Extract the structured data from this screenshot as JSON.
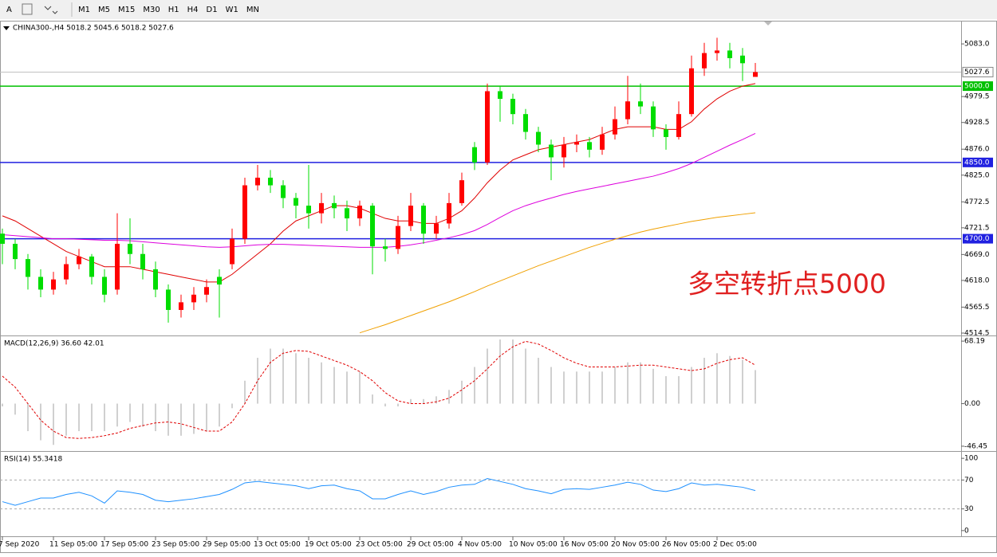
{
  "toolbar": {
    "font": "A",
    "timeframes": [
      "M1",
      "M5",
      "M15",
      "M30",
      "H1",
      "H4",
      "D1",
      "W1",
      "MN"
    ]
  },
  "chart_data": [
    {
      "type": "candlestick",
      "title": "CHINA300-,H4 5018.2 5045.6 5018.2 5027.6",
      "annotation": "多空转折点5000",
      "categories": [
        "7 Sep 2020",
        null,
        null,
        null,
        "11 Sep 05:00",
        null,
        null,
        null,
        "17 Sep 05:00",
        null,
        null,
        null,
        "23 Sep 05:00",
        null,
        null,
        null,
        "29 Sep 05:00",
        null,
        null,
        null,
        "13 Oct 05:00",
        null,
        null,
        null,
        "19 Oct 05:00",
        null,
        null,
        null,
        "23 Oct 05:00",
        null,
        null,
        null,
        "29 Oct 05:00",
        null,
        null,
        null,
        "4 Nov 05:00",
        null,
        null,
        null,
        "10 Nov 05:00",
        null,
        null,
        null,
        "16 Nov 05:00",
        null,
        null,
        null,
        "20 Nov 05:00",
        null,
        null,
        null,
        "26 Nov 05:00",
        null,
        null,
        null,
        "2 Dec 05:00",
        null,
        null,
        null
      ],
      "open": [
        4710,
        4690,
        4660,
        4625,
        4600,
        4620,
        4650,
        4665,
        4625,
        4600,
        4690,
        4670,
        4640,
        4600,
        4560,
        4575,
        4590,
        4625,
        4650,
        4700,
        4805,
        4820,
        4805,
        4780,
        4765,
        4750,
        4770,
        4760,
        4740,
        4765,
        4685,
        4680,
        4725,
        4765,
        4710,
        4730,
        4770,
        4880,
        4850,
        4990,
        4975,
        4945,
        4910,
        4885,
        4860,
        4885,
        4890,
        4875,
        4905,
        4935,
        4970,
        4960,
        4915,
        4900,
        4945,
        5035,
        5065,
        5070,
        5060,
        5018.2
      ],
      "high": [
        4720,
        4700,
        4670,
        4640,
        4635,
        4665,
        4680,
        4670,
        4640,
        4750,
        4740,
        4690,
        4655,
        4610,
        4590,
        4605,
        4620,
        4640,
        4720,
        4820,
        4845,
        4835,
        4815,
        4790,
        4845,
        4790,
        4785,
        4775,
        4775,
        4770,
        4700,
        4745,
        4790,
        4770,
        4745,
        4790,
        4830,
        4890,
        5005,
        5000,
        4985,
        4955,
        4920,
        4895,
        4900,
        4905,
        4900,
        4920,
        4960,
        5020,
        5005,
        4970,
        4925,
        4970,
        5060,
        5085,
        5095,
        5085,
        5075,
        5045.6
      ],
      "low": [
        4650,
        4640,
        4600,
        4585,
        4590,
        4610,
        4640,
        4610,
        4575,
        4590,
        4650,
        4620,
        4585,
        4535,
        4545,
        4560,
        4575,
        4545,
        4640,
        4690,
        4795,
        4790,
        4760,
        4740,
        4720,
        4730,
        4740,
        4715,
        4725,
        4630,
        4655,
        4670,
        4715,
        4690,
        4700,
        4720,
        4765,
        4835,
        4845,
        4930,
        4925,
        4895,
        4870,
        4815,
        4840,
        4870,
        4860,
        4865,
        4895,
        4925,
        4945,
        4900,
        4875,
        4895,
        4940,
        5020,
        5050,
        5035,
        5010,
        5018.2
      ],
      "close": [
        4690,
        4660,
        4625,
        4600,
        4620,
        4650,
        4665,
        4625,
        4590,
        4690,
        4670,
        4640,
        4600,
        4560,
        4575,
        4590,
        4605,
        4610,
        4700,
        4805,
        4820,
        4805,
        4780,
        4765,
        4750,
        4770,
        4760,
        4740,
        4765,
        4685,
        4680,
        4725,
        4765,
        4710,
        4730,
        4770,
        4815,
        4850,
        4990,
        4975,
        4945,
        4910,
        4885,
        4860,
        4885,
        4890,
        4875,
        4905,
        4935,
        4970,
        4960,
        4915,
        4900,
        4945,
        5035,
        5065,
        5070,
        5055,
        5045,
        5027.6
      ],
      "up_color": "#ff0000",
      "down_color": "#00dd00",
      "lines": [
        {
          "color": "#e00000",
          "values": [
            4745,
            4735,
            4720,
            4705,
            4690,
            4675,
            4665,
            4655,
            4645,
            4645,
            4645,
            4640,
            4635,
            4630,
            4625,
            4620,
            4615,
            4615,
            4630,
            4650,
            4670,
            4690,
            4715,
            4735,
            4745,
            4755,
            4765,
            4765,
            4760,
            4750,
            4740,
            4735,
            4735,
            4730,
            4730,
            4740,
            4755,
            4780,
            4810,
            4835,
            4855,
            4865,
            4875,
            4880,
            4885,
            4890,
            4895,
            4905,
            4915,
            4920,
            4920,
            4920,
            4915,
            4915,
            4930,
            4955,
            4975,
            4990,
            5000,
            5005
          ]
        },
        {
          "color": "#dd00dd",
          "values": [
            4708,
            4706,
            4704,
            4702,
            4700,
            4700,
            4699,
            4698,
            4697,
            4697,
            4696,
            4694,
            4692,
            4690,
            4688,
            4686,
            4684,
            4683,
            4684,
            4686,
            4688,
            4689,
            4689,
            4688,
            4687,
            4686,
            4685,
            4684,
            4683,
            4683,
            4683,
            4685,
            4688,
            4692,
            4697,
            4702,
            4708,
            4716,
            4728,
            4742,
            4755,
            4765,
            4773,
            4780,
            4787,
            4793,
            4798,
            4803,
            4808,
            4813,
            4818,
            4823,
            4830,
            4838,
            4848,
            4860,
            4872,
            4884,
            4895,
            4907
          ]
        },
        {
          "color": "#f0a000",
          "values": [
            null,
            null,
            null,
            null,
            null,
            null,
            null,
            null,
            null,
            null,
            null,
            null,
            null,
            null,
            null,
            null,
            null,
            null,
            null,
            null,
            null,
            null,
            null,
            null,
            null,
            null,
            null,
            null,
            4515,
            4523,
            4531,
            4540,
            4549,
            4558,
            4567,
            4576,
            4586,
            4596,
            4607,
            4617,
            4627,
            4637,
            4647,
            4656,
            4665,
            4674,
            4683,
            4691,
            4699,
            4706,
            4713,
            4719,
            4724,
            4729,
            4734,
            4738,
            4742,
            4745,
            4748,
            4751
          ]
        }
      ],
      "levels": [
        {
          "value": 5000,
          "label": "5000.0",
          "color": "#00c000"
        },
        {
          "value": 4850,
          "label": "4850.0",
          "color": "#2020e0"
        },
        {
          "value": 4700,
          "label": "4700.0",
          "color": "#2020e0"
        }
      ],
      "current": {
        "value": 5027.6,
        "label": "5027.6",
        "color": "#c0c0c0"
      },
      "ylim": [
        4509.8,
        5127.0
      ],
      "yticks": [
        {
          "value": 5083,
          "label": "5083.0"
        },
        {
          "value": 4979.5,
          "label": "4979.5"
        },
        {
          "value": 4928.5,
          "label": "4928.5"
        },
        {
          "value": 4876,
          "label": "4876.0"
        },
        {
          "value": 4825,
          "label": "4825.0"
        },
        {
          "value": 4772.5,
          "label": "4772.5"
        },
        {
          "value": 4721.5,
          "label": "4721.5"
        },
        {
          "value": 4669,
          "label": "4669.0"
        },
        {
          "value": 4618,
          "label": "4618.0"
        },
        {
          "value": 4565.5,
          "label": "4565.5"
        },
        {
          "value": 4514.5,
          "label": "4514.5"
        }
      ]
    },
    {
      "type": "macd",
      "title": "MACD(12,26,9) 36.60 42.01",
      "values": [
        -3,
        -12,
        -30,
        -40,
        -45,
        -35,
        -30,
        -30,
        -30,
        -25,
        -20,
        -25,
        -30,
        -35,
        -35,
        -33,
        -30,
        -25,
        -5,
        25,
        50,
        60,
        60,
        55,
        50,
        45,
        40,
        35,
        35,
        10,
        -3,
        -3,
        5,
        5,
        8,
        15,
        25,
        40,
        60,
        70,
        70,
        60,
        50,
        40,
        35,
        35,
        35,
        35,
        40,
        45,
        45,
        38,
        30,
        30,
        40,
        50,
        55,
        52,
        48,
        36.6
      ],
      "signal": [
        30,
        18,
        0,
        -18,
        -30,
        -37,
        -38,
        -37,
        -35,
        -32,
        -27,
        -24,
        -21,
        -20,
        -22,
        -26,
        -30,
        -30,
        -20,
        0,
        25,
        45,
        55,
        58,
        57,
        52,
        47,
        42,
        35,
        25,
        12,
        3,
        0,
        0,
        2,
        6,
        15,
        25,
        38,
        52,
        62,
        68,
        65,
        58,
        50,
        44,
        40,
        40,
        40,
        41,
        42,
        42,
        40,
        38,
        36,
        38,
        44,
        48,
        50,
        42.01
      ],
      "color": "#c0c0c0",
      "signal_color": "#e00000",
      "ylim": [
        -51.7,
        73.5
      ],
      "yticks": [
        68.19,
        {
          "value": 0,
          "label": "0.00"
        },
        -46.45
      ]
    },
    {
      "type": "rsi",
      "title": "RSI(14) 55.3418",
      "values": [
        40,
        35,
        40,
        45,
        45,
        50,
        53,
        48,
        38,
        55,
        53,
        50,
        42,
        40,
        42,
        44,
        47,
        50,
        57,
        66,
        68,
        66,
        64,
        62,
        58,
        62,
        63,
        58,
        55,
        44,
        44,
        50,
        55,
        50,
        54,
        60,
        63,
        64,
        72,
        68,
        64,
        58,
        55,
        51,
        57,
        58,
        57,
        60,
        63,
        67,
        64,
        56,
        54,
        58,
        66,
        63,
        64,
        62,
        60,
        55.3418
      ],
      "color": "#1e90ff",
      "levels": [
        70,
        30
      ],
      "ylim": [
        -7.9,
        109
      ],
      "yticks": [
        100,
        70,
        30,
        0
      ]
    }
  ]
}
